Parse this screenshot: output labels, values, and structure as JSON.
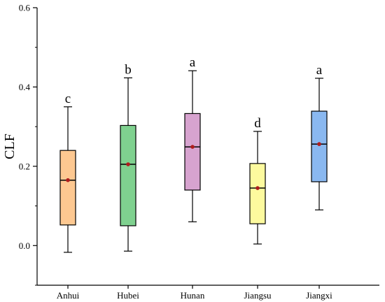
{
  "chart_data": {
    "type": "box",
    "title": "",
    "xlabel": "",
    "ylabel": "CLF",
    "ylim": [
      -0.1,
      0.6
    ],
    "yticks": [
      0.0,
      0.2,
      0.4,
      0.6
    ],
    "ytick_labels": [
      "0.0",
      "0.2",
      "0.4",
      "0.6"
    ],
    "categories": [
      "Anhui",
      "Hubei",
      "Hunan",
      "Jiangsu",
      "Jiangxi"
    ],
    "boxes": [
      {
        "category": "Anhui",
        "whisker_low": -0.017,
        "q1": 0.052,
        "median": 0.165,
        "q3": 0.24,
        "whisker_high": 0.35,
        "mean": 0.165,
        "letter": "c",
        "color": "#fdc891"
      },
      {
        "category": "Hubei",
        "whisker_low": -0.014,
        "q1": 0.05,
        "median": 0.205,
        "q3": 0.303,
        "whisker_high": 0.423,
        "mean": 0.205,
        "letter": "b",
        "color": "#7fd18f"
      },
      {
        "category": "Hunan",
        "whisker_low": 0.06,
        "q1": 0.14,
        "median": 0.249,
        "q3": 0.333,
        "whisker_high": 0.441,
        "mean": 0.249,
        "letter": "a",
        "color": "#d7a3cf"
      },
      {
        "category": "Jiangsu",
        "whisker_low": 0.004,
        "q1": 0.055,
        "median": 0.145,
        "q3": 0.207,
        "whisker_high": 0.288,
        "mean": 0.145,
        "letter": "d",
        "color": "#fdfa9e"
      },
      {
        "category": "Jiangxi",
        "whisker_low": 0.09,
        "q1": 0.161,
        "median": 0.256,
        "q3": 0.339,
        "whisker_high": 0.422,
        "mean": 0.256,
        "letter": "a",
        "color": "#8ab8f0"
      }
    ],
    "mean_marker_color": "#b01c1c",
    "grid": false,
    "legend": "none"
  }
}
